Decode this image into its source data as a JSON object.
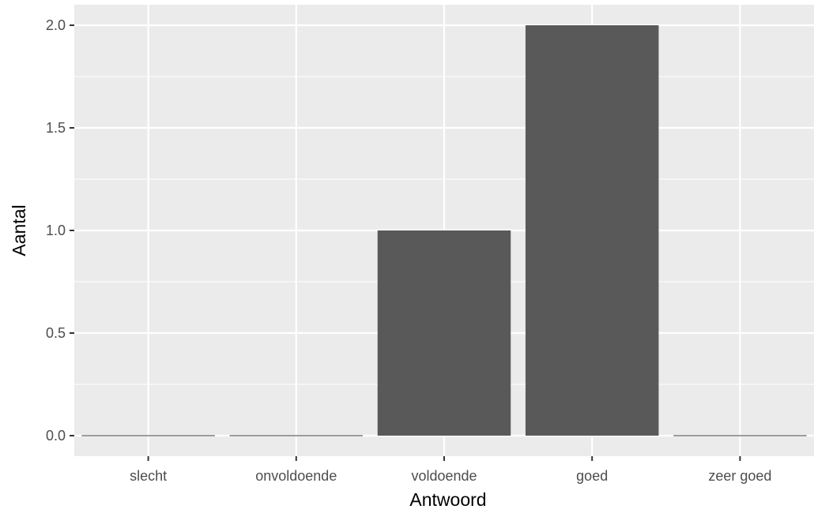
{
  "chart_data": {
    "type": "bar",
    "title": "",
    "xlabel": "Antwoord",
    "ylabel": "Aantal",
    "categories": [
      "slecht",
      "onvoldoende",
      "voldoende",
      "goed",
      "zeer goed"
    ],
    "values": [
      0,
      0,
      1,
      2,
      0
    ],
    "ylim": [
      -0.1,
      2.1
    ],
    "yticks": [
      "0.0",
      "0.5",
      "1.0",
      "1.5",
      "2.0"
    ],
    "grid": true,
    "legend": "none",
    "colors": {
      "panel_background": "#ebebeb",
      "grid_line": "#ffffff",
      "bar_fill": "#595959",
      "tick_label": "#4d4d4d",
      "axis_title": "#000000"
    }
  }
}
